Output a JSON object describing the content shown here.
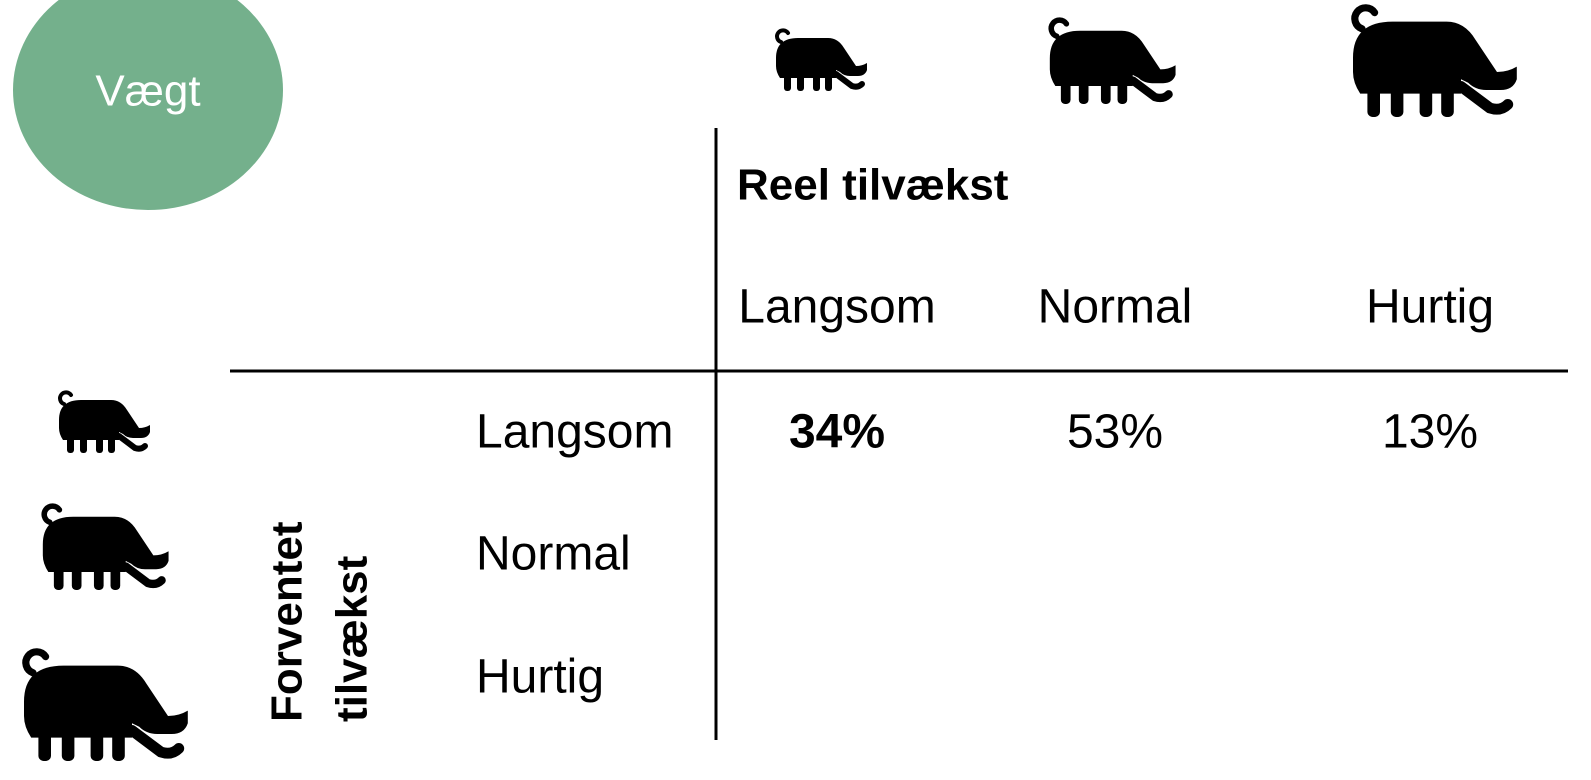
{
  "badge": "Vægt",
  "table": {
    "column_title": "Reel tilvækst",
    "row_title": [
      "Forventet",
      "tilvækst"
    ],
    "columns": [
      "Langsom",
      "Normal",
      "Hurtig"
    ],
    "rows": [
      "Langsom",
      "Normal",
      "Hurtig"
    ],
    "cells": [
      [
        "34%",
        "53%",
        "13%"
      ]
    ]
  }
}
